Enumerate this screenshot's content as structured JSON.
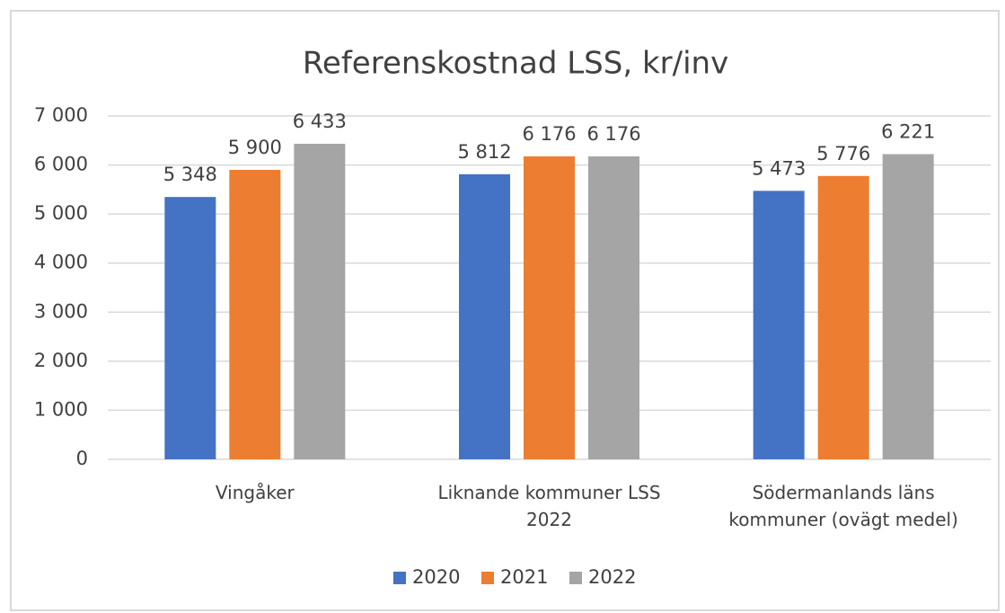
{
  "chart_data": {
    "type": "bar",
    "title": "Referenskostnad LSS, kr/inv",
    "categories": [
      "Vingåker",
      "Liknande kommuner LSS 2022",
      "Södermanlands läns kommuner (ovägt medel)"
    ],
    "series": [
      {
        "name": "2020",
        "color": "#4472c4",
        "values": [
          5348,
          5812,
          5473
        ],
        "value_labels": [
          "5 348",
          "5 812",
          "5 473"
        ]
      },
      {
        "name": "2021",
        "color": "#ed7d31",
        "values": [
          5900,
          6176,
          5776
        ],
        "value_labels": [
          "5 900",
          "6 176",
          "5 776"
        ]
      },
      {
        "name": "2022",
        "color": "#a5a5a5",
        "values": [
          6433,
          6176,
          6221
        ],
        "value_labels": [
          "6 433",
          "6 176",
          "6 221"
        ]
      }
    ],
    "ylim": [
      0,
      7000
    ],
    "yticks": [
      0,
      {
        "value": 1000,
        "label": "1 000"
      },
      {
        "value": 2000,
        "label": "2 000"
      },
      {
        "value": 3000,
        "label": "3 000"
      },
      {
        "value": 4000,
        "label": "4 000"
      },
      {
        "value": 5000,
        "label": "5 000"
      },
      {
        "value": 6000,
        "label": "6 000"
      },
      {
        "value": 7000,
        "label": "7 000"
      }
    ],
    "grid": true,
    "legend": "bottom"
  }
}
